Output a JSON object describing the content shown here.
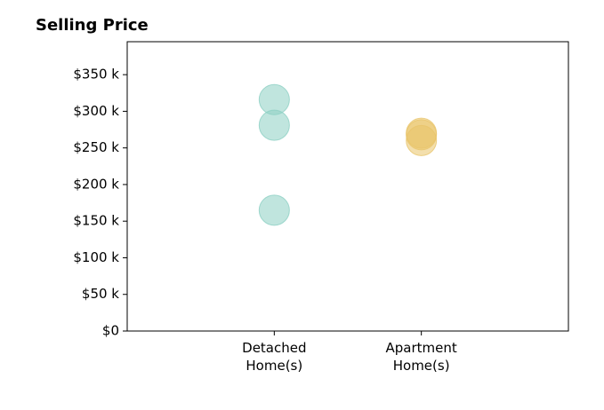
{
  "chart_data": {
    "type": "strip",
    "title": "Selling Price",
    "categories": [
      "Detached\nHome(s)",
      "Apartment\nHome(s)"
    ],
    "values": [
      [
        316000,
        281000,
        165000
      ],
      [
        270000,
        268000,
        260000
      ]
    ],
    "colors": [
      "#8ccfc3",
      "#e9c46a"
    ],
    "ylim": [
      0,
      395000
    ],
    "yticks": [
      {
        "value": 0,
        "label": "$0"
      },
      {
        "value": 50000,
        "label": "$50 k"
      },
      {
        "value": 100000,
        "label": "$100 k"
      },
      {
        "value": 150000,
        "label": "$150 k"
      },
      {
        "value": 200000,
        "label": "$200 k"
      },
      {
        "value": 250000,
        "label": "$250 k"
      },
      {
        "value": 300000,
        "label": "$300 k"
      },
      {
        "value": 350000,
        "label": "$350 k"
      }
    ]
  }
}
